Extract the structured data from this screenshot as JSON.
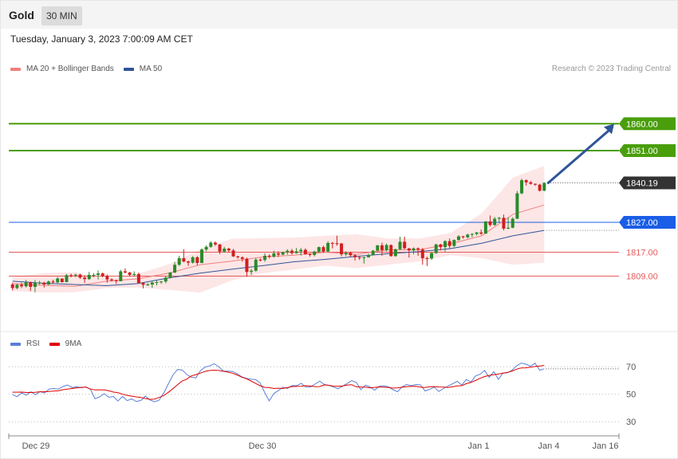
{
  "header": {
    "symbol": "Gold",
    "timeframe": "30 MIN",
    "datetime": "Tuesday, January 3, 2023 7:00:09 AM CET"
  },
  "legend": {
    "ma20_label": "MA 20 + Bollinger Bands",
    "ma50_label": "MA 50",
    "ma20_color": "#f08080",
    "ma50_color": "#2f5597",
    "credit": "Research © 2023 Trading Central"
  },
  "rsi_legend": {
    "rsi_label": "RSI",
    "ma9_label": "9MA",
    "rsi_color": "#5b7fd6",
    "ma9_color": "#e00000"
  },
  "chart_data": [
    {
      "type": "candlestick",
      "ylim": [
        1796.6,
        1872.6
      ],
      "x_ticks": [
        "Dec 29",
        "Dec 30",
        "Jan 1",
        "Jan 4",
        "Jan 16"
      ],
      "price_levels": [
        {
          "label": "1860.00",
          "value": 1860.0,
          "kind": "resistance",
          "color": "#4a9e0c"
        },
        {
          "label": "1851.00",
          "value": 1851.0,
          "kind": "resistance",
          "color": "#4a9e0c"
        },
        {
          "label": "1840.19",
          "value": 1840.19,
          "kind": "last",
          "color": "#333333"
        },
        {
          "label": "1827.00",
          "value": 1827.0,
          "kind": "pivot",
          "color": "#1a5de6"
        },
        {
          "label": "1817.00",
          "value": 1817.0,
          "kind": "support",
          "color": "#e45b5b"
        },
        {
          "label": "1809.00",
          "value": 1809.0,
          "kind": "support",
          "color": "#e45b5b"
        }
      ],
      "forecast": {
        "from": 1840.19,
        "to": 1860.0
      },
      "ma50": [
        1807.3,
        1806.6,
        1806.2,
        1805.8,
        1806.5,
        1808.4,
        1810.0,
        1811.3,
        1812.5,
        1813.8,
        1814.6,
        1815.6,
        1816.5,
        1817.2,
        1818.2,
        1820.0,
        1822.5,
        1824.3
      ],
      "ma20": [
        1806.5,
        1805.9,
        1805.6,
        1807.3,
        1808.1,
        1810.0,
        1812.8,
        1814.0,
        1815.4,
        1816.0,
        1817.0,
        1816.3,
        1817.8,
        1817.8,
        1819.8,
        1822.5,
        1829.7,
        1832.8
      ],
      "bb_upper": [
        1808.7,
        1810.0,
        1810.3,
        1808.1,
        1809.7,
        1813.0,
        1817.9,
        1821.5,
        1821.7,
        1821.9,
        1822.5,
        1823.0,
        1821.6,
        1821.6,
        1823.4,
        1830.0,
        1842.0,
        1845.9
      ],
      "bb_lower": [
        1804.0,
        1803.5,
        1803.6,
        1805.0,
        1805.2,
        1804.4,
        1803.5,
        1807.5,
        1810.0,
        1811.2,
        1812.5,
        1811.7,
        1812.8,
        1813.9,
        1816.0,
        1815.0,
        1812.8,
        1813.5
      ],
      "ohlc": [
        [
          1806.2,
          1806.8,
          1804.2,
          1805.0
        ],
        [
          1805.0,
          1806.5,
          1804.6,
          1806.1
        ],
        [
          1806.1,
          1806.8,
          1805.0,
          1805.6
        ],
        [
          1805.6,
          1807.7,
          1805.2,
          1807.0
        ],
        [
          1807.0,
          1807.2,
          1804.0,
          1805.4
        ],
        [
          1805.4,
          1807.7,
          1803.6,
          1806.7
        ],
        [
          1806.7,
          1807.4,
          1806.1,
          1806.8
        ],
        [
          1806.8,
          1807.1,
          1805.2,
          1806.2
        ],
        [
          1806.2,
          1807.5,
          1806.0,
          1807.2
        ],
        [
          1807.2,
          1807.8,
          1806.4,
          1806.9
        ],
        [
          1806.9,
          1808.7,
          1806.6,
          1808.2
        ],
        [
          1808.2,
          1808.2,
          1806.8,
          1807.0
        ],
        [
          1807.0,
          1809.7,
          1806.9,
          1809.3
        ],
        [
          1809.3,
          1809.8,
          1808.6,
          1809.2
        ],
        [
          1809.2,
          1809.8,
          1808.7,
          1809.5
        ],
        [
          1809.5,
          1809.8,
          1808.1,
          1808.5
        ],
        [
          1808.5,
          1809.2,
          1806.7,
          1808.0
        ],
        [
          1808.0,
          1810.4,
          1807.8,
          1809.4
        ],
        [
          1809.4,
          1810.0,
          1808.6,
          1809.4
        ],
        [
          1809.4,
          1810.9,
          1807.9,
          1809.9
        ],
        [
          1809.9,
          1810.2,
          1808.6,
          1809.0
        ],
        [
          1809.0,
          1809.6,
          1806.8,
          1807.9
        ],
        [
          1807.9,
          1808.3,
          1807.2,
          1807.6
        ],
        [
          1807.6,
          1807.8,
          1806.4,
          1807.3
        ],
        [
          1807.3,
          1811.1,
          1807.3,
          1810.6
        ],
        [
          1810.6,
          1811.6,
          1809.9,
          1810.2
        ],
        [
          1810.2,
          1810.4,
          1808.9,
          1809.4
        ],
        [
          1809.4,
          1810.6,
          1808.9,
          1809.7
        ],
        [
          1809.7,
          1810.2,
          1806.5,
          1806.7
        ],
        [
          1806.7,
          1807.0,
          1804.9,
          1806.1
        ],
        [
          1806.1,
          1806.7,
          1805.7,
          1806.2
        ],
        [
          1806.2,
          1807.1,
          1805.1,
          1806.9
        ],
        [
          1806.9,
          1807.5,
          1805.9,
          1807.0
        ],
        [
          1807.0,
          1807.4,
          1806.4,
          1807.2
        ],
        [
          1807.2,
          1809.0,
          1806.6,
          1808.5
        ],
        [
          1808.5,
          1810.3,
          1808.2,
          1810.2
        ],
        [
          1810.2,
          1813.7,
          1810.0,
          1812.8
        ],
        [
          1812.8,
          1815.8,
          1812.4,
          1815.0
        ],
        [
          1815.0,
          1818.0,
          1813.6,
          1813.9
        ],
        [
          1813.9,
          1814.2,
          1812.4,
          1813.5
        ],
        [
          1813.5,
          1815.7,
          1813.2,
          1815.3
        ],
        [
          1815.3,
          1815.7,
          1812.6,
          1813.4
        ],
        [
          1813.4,
          1818.3,
          1813.3,
          1817.9
        ],
        [
          1817.9,
          1819.3,
          1817.3,
          1818.8
        ],
        [
          1818.8,
          1820.7,
          1818.5,
          1820.2
        ],
        [
          1820.2,
          1820.6,
          1819.1,
          1819.6
        ],
        [
          1819.6,
          1819.7,
          1816.4,
          1817.2
        ],
        [
          1817.2,
          1818.8,
          1816.9,
          1818.2
        ],
        [
          1818.2,
          1818.5,
          1816.9,
          1817.6
        ],
        [
          1817.6,
          1818.1,
          1815.4,
          1815.6
        ],
        [
          1815.6,
          1815.8,
          1814.8,
          1815.3
        ],
        [
          1815.3,
          1815.6,
          1813.8,
          1814.8
        ],
        [
          1814.8,
          1815.2,
          1808.8,
          1810.4
        ],
        [
          1810.4,
          1811.4,
          1809.4,
          1810.8
        ],
        [
          1810.8,
          1815.0,
          1810.5,
          1814.5
        ],
        [
          1814.5,
          1815.0,
          1813.9,
          1814.4
        ],
        [
          1814.4,
          1816.6,
          1813.8,
          1815.8
        ],
        [
          1815.8,
          1816.3,
          1814.9,
          1815.5
        ],
        [
          1815.5,
          1817.5,
          1815.2,
          1816.6
        ],
        [
          1816.6,
          1817.3,
          1815.4,
          1816.2
        ],
        [
          1816.2,
          1817.2,
          1816.0,
          1817.0
        ],
        [
          1817.0,
          1818.0,
          1816.2,
          1817.5
        ],
        [
          1817.5,
          1818.1,
          1816.2,
          1816.7
        ],
        [
          1816.7,
          1818.4,
          1816.5,
          1817.3
        ],
        [
          1817.3,
          1818.4,
          1815.9,
          1817.8
        ],
        [
          1817.8,
          1818.3,
          1816.1,
          1816.4
        ],
        [
          1816.4,
          1816.6,
          1815.5,
          1816.1
        ],
        [
          1816.1,
          1817.5,
          1815.6,
          1817.2
        ],
        [
          1817.2,
          1818.9,
          1816.8,
          1818.7
        ],
        [
          1818.7,
          1819.2,
          1816.8,
          1817.2
        ],
        [
          1817.2,
          1820.7,
          1817.1,
          1820.1
        ],
        [
          1820.1,
          1820.4,
          1818.3,
          1820.0
        ],
        [
          1820.0,
          1822.5,
          1819.2,
          1819.9
        ],
        [
          1819.9,
          1820.1,
          1815.6,
          1816.3
        ],
        [
          1816.3,
          1817.3,
          1815.7,
          1816.8
        ],
        [
          1816.8,
          1817.2,
          1815.5,
          1816.0
        ],
        [
          1816.0,
          1816.4,
          1814.2,
          1815.3
        ],
        [
          1815.3,
          1815.7,
          1814.4,
          1815.2
        ],
        [
          1815.2,
          1815.5,
          1813.2,
          1815.3
        ],
        [
          1815.3,
          1816.5,
          1815.2,
          1816.1
        ],
        [
          1816.1,
          1817.8,
          1816.0,
          1817.5
        ],
        [
          1817.5,
          1819.4,
          1817.3,
          1819.3
        ],
        [
          1819.3,
          1820.2,
          1815.8,
          1817.7
        ],
        [
          1817.7,
          1819.9,
          1817.3,
          1819.4
        ],
        [
          1819.4,
          1819.6,
          1815.5,
          1815.7
        ],
        [
          1815.7,
          1818.2,
          1815.5,
          1818.0
        ],
        [
          1818.0,
          1822.2,
          1817.7,
          1820.5
        ],
        [
          1820.5,
          1822.2,
          1818.0,
          1818.3
        ],
        [
          1818.3,
          1818.4,
          1815.2,
          1817.6
        ],
        [
          1817.6,
          1818.6,
          1816.3,
          1818.3
        ],
        [
          1818.3,
          1818.6,
          1815.8,
          1817.9
        ],
        [
          1817.9,
          1818.4,
          1812.8,
          1815.0
        ],
        [
          1815.0,
          1815.5,
          1812.4,
          1814.9
        ],
        [
          1814.9,
          1817.0,
          1814.4,
          1816.7
        ],
        [
          1816.7,
          1819.8,
          1816.5,
          1819.6
        ],
        [
          1819.6,
          1819.8,
          1817.6,
          1818.7
        ],
        [
          1818.7,
          1821.0,
          1817.2,
          1820.7
        ],
        [
          1820.7,
          1821.6,
          1818.2,
          1819.1
        ],
        [
          1819.1,
          1821.3,
          1818.7,
          1821.1
        ],
        [
          1821.1,
          1822.7,
          1820.8,
          1822.3
        ],
        [
          1822.3,
          1822.5,
          1821.5,
          1822.0
        ],
        [
          1822.0,
          1823.2,
          1821.6,
          1822.9
        ],
        [
          1822.9,
          1823.4,
          1822.0,
          1823.1
        ],
        [
          1823.1,
          1823.8,
          1822.6,
          1823.6
        ],
        [
          1823.6,
          1824.6,
          1822.8,
          1823.2
        ],
        [
          1823.2,
          1827.4,
          1823.2,
          1827.3
        ],
        [
          1827.3,
          1829.3,
          1825.6,
          1826.1
        ],
        [
          1826.1,
          1828.8,
          1825.9,
          1828.2
        ],
        [
          1828.2,
          1828.8,
          1827.0,
          1828.5
        ],
        [
          1828.5,
          1829.6,
          1824.3,
          1824.9
        ],
        [
          1824.9,
          1828.6,
          1824.7,
          1825.2
        ],
        [
          1825.2,
          1828.7,
          1825.0,
          1828.2
        ],
        [
          1828.2,
          1837.5,
          1828.1,
          1836.7
        ],
        [
          1836.7,
          1841.6,
          1836.4,
          1841.1
        ],
        [
          1841.1,
          1841.4,
          1839.3,
          1840.4
        ],
        [
          1840.4,
          1840.8,
          1839.6,
          1839.9
        ],
        [
          1839.9,
          1840.0,
          1839.2,
          1839.6
        ],
        [
          1839.6,
          1839.9,
          1837.3,
          1837.6
        ],
        [
          1837.6,
          1840.4,
          1837.4,
          1840.2
        ]
      ]
    },
    {
      "type": "line",
      "name": "RSI",
      "ylim": [
        22,
        80
      ],
      "y_ticks": [
        "70",
        "50",
        "30"
      ],
      "rsi": [
        49.7,
        48.2,
        51.0,
        49.3,
        51.8,
        49.6,
        51.9,
        50.9,
        53.8,
        54.2,
        53.8,
        55.6,
        56.8,
        54.9,
        55.4,
        54.7,
        55.3,
        53.6,
        46.7,
        48.1,
        50.4,
        47.8,
        48.4,
        45.1,
        48.4,
        45.4,
        46.6,
        44.7,
        45.5,
        48.6,
        45.8,
        44.5,
        45.8,
        50.9,
        57.6,
        64.0,
        68.0,
        67.7,
        64.4,
        62.4,
        61.9,
        67.2,
        69.8,
        70.6,
        72.2,
        69.9,
        66.9,
        66.8,
        66.6,
        64.9,
        62.7,
        61.6,
        60.9,
        60.7,
        58.3,
        51.3,
        45.2,
        50.5,
        52.7,
        55.1,
        54.2,
        56.4,
        56.2,
        57.9,
        55.2,
        55.3,
        57.4,
        59.5,
        57.2,
        56.4,
        55.4,
        54.0,
        55.9,
        57.8,
        59.9,
        58.6,
        53.3,
        56.6,
        55.3,
        53.0,
        55.8,
        56.1,
        55.4,
        53.3,
        51.8,
        55.4,
        57.1,
        56.2,
        57.1,
        56.8,
        52.4,
        53.6,
        55.2,
        52.0,
        54.2,
        55.9,
        57.6,
        59.4,
        56.7,
        60.7,
        58.9,
        63.3,
        64.5,
        67.3,
        62.3,
        66.4,
        60.8,
        65.4,
        65.6,
        67.6,
        70.8,
        72.7,
        71.9,
        70.5,
        72.6,
        67.5,
        68.5
      ],
      "rsi_ma9": [
        51.5,
        51.5,
        51.6,
        51.3,
        51.3,
        51.4,
        51.8,
        51.8,
        52.0,
        52.3,
        52.5,
        53.3,
        53.7,
        54.2,
        54.6,
        55.0,
        55.2,
        53.8,
        53.2,
        53.2,
        53.2,
        52.5,
        51.6,
        51.1,
        50.0,
        49.2,
        48.6,
        48.1,
        47.7,
        46.9,
        46.3,
        46.4,
        47.7,
        49.1,
        51.4,
        54.1,
        57.0,
        59.6,
        61.0,
        63.3,
        64.3,
        65.4,
        66.6,
        67.3,
        67.5,
        67.3,
        66.7,
        66.1,
        65.3,
        64.0,
        62.4,
        61.3,
        59.7,
        57.9,
        56.2,
        55.0,
        54.8,
        54.2,
        54.4,
        54.2,
        54.9,
        55.6,
        55.7,
        55.8,
        56.2,
        56.0,
        55.5,
        55.6,
        56.8,
        56.5,
        55.9,
        55.8,
        56.0,
        56.6,
        57.0,
        55.4,
        55.2,
        55.2,
        54.6,
        55.0,
        55.3,
        55.1,
        54.9,
        54.5,
        54.6,
        55.1,
        55.5,
        55.7,
        55.8,
        55.1,
        54.9,
        55.4,
        55.6,
        55.3,
        55.2,
        54.9,
        55.4,
        56.1,
        56.2,
        57.7,
        58.6,
        60.0,
        61.6,
        62.9,
        63.7,
        64.3,
        64.7,
        65.3,
        65.9,
        66.9,
        68.3,
        69.1,
        69.2,
        69.7,
        70.2,
        70.5,
        71.0
      ]
    }
  ]
}
